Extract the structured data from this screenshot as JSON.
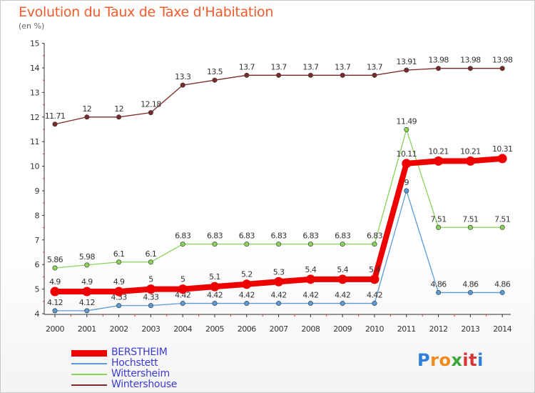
{
  "header": {
    "title": "Evolution du Taux de Taxe d'Habitation",
    "unit": "(en %)"
  },
  "logo": {
    "letters": [
      "P",
      "r",
      "o",
      "x",
      "i",
      "t",
      "i"
    ],
    "colors": [
      "#2f7fd9",
      "#f08a1c",
      "#f08a1c",
      "#3aa63a",
      "#d93636",
      "#d93636",
      "#2f7fd9"
    ]
  },
  "chart_data": {
    "type": "line",
    "x": [
      "2000",
      "2001",
      "2002",
      "2003",
      "2004",
      "2005",
      "2006",
      "2007",
      "2008",
      "2009",
      "2010",
      "2011",
      "2012",
      "2013",
      "2014"
    ],
    "ylim": [
      4,
      15
    ],
    "yticks": [
      4,
      5,
      6,
      7,
      8,
      9,
      10,
      11,
      12,
      13,
      14,
      15
    ],
    "ylabel": "(en %)",
    "grid": false,
    "legend_position": "bottom-left",
    "series": [
      {
        "name": "Wintershouse",
        "color": "#7a2a2a",
        "values": [
          11.71,
          12,
          12,
          12.18,
          13.3,
          13.5,
          13.7,
          13.7,
          13.7,
          13.7,
          13.7,
          13.91,
          13.98,
          13.98,
          13.98
        ],
        "labels": [
          "11.71",
          "12",
          "12",
          "12.18",
          "13.3",
          "13.5",
          "13.7",
          "13.7",
          "13.7",
          "13.7",
          "13.7",
          "13.91",
          "13.98",
          "13.98",
          "13.98"
        ]
      },
      {
        "name": "Wittersheim",
        "color": "#8ad35a",
        "values": [
          5.86,
          5.98,
          6.1,
          6.1,
          6.83,
          6.83,
          6.83,
          6.83,
          6.83,
          6.83,
          6.83,
          11.49,
          7.51,
          7.51,
          7.51
        ],
        "labels": [
          "5.86",
          "5.98",
          "6.1",
          "6.1",
          "6.83",
          "6.83",
          "6.83",
          "6.83",
          "6.83",
          "6.83",
          "6.83",
          "11.49",
          "7.51",
          "7.51",
          "7.51"
        ]
      },
      {
        "name": "Hochstett",
        "color": "#5b9bd5",
        "values": [
          4.12,
          4.12,
          4.33,
          4.33,
          4.42,
          4.42,
          4.42,
          4.42,
          4.42,
          4.42,
          4.42,
          9,
          4.86,
          4.86,
          4.86
        ],
        "labels": [
          "4.12",
          "4.12",
          "4.33",
          "4.33",
          "4.42",
          "4.42",
          "4.42",
          "4.42",
          "4.42",
          "4.42",
          "4.42",
          "9",
          "4.86",
          "4.86",
          "4.86"
        ]
      },
      {
        "name": "BERSTHEIM",
        "color": "#ee0000",
        "values": [
          4.9,
          4.9,
          4.9,
          5,
          5,
          5.1,
          5.2,
          5.3,
          5.4,
          5.4,
          5.4,
          10.11,
          10.21,
          10.21,
          10.31
        ],
        "labels": [
          "4.9",
          "4.9",
          "4.9",
          "5",
          "5",
          "5.1",
          "5.2",
          "5.3",
          "5.4",
          "5.4",
          "5.4",
          "10.11",
          "10.21",
          "10.21",
          "10.31"
        ]
      }
    ],
    "legend": [
      "BERSTHEIM",
      "Hochstett",
      "Wittersheim",
      "Wintershouse"
    ]
  }
}
